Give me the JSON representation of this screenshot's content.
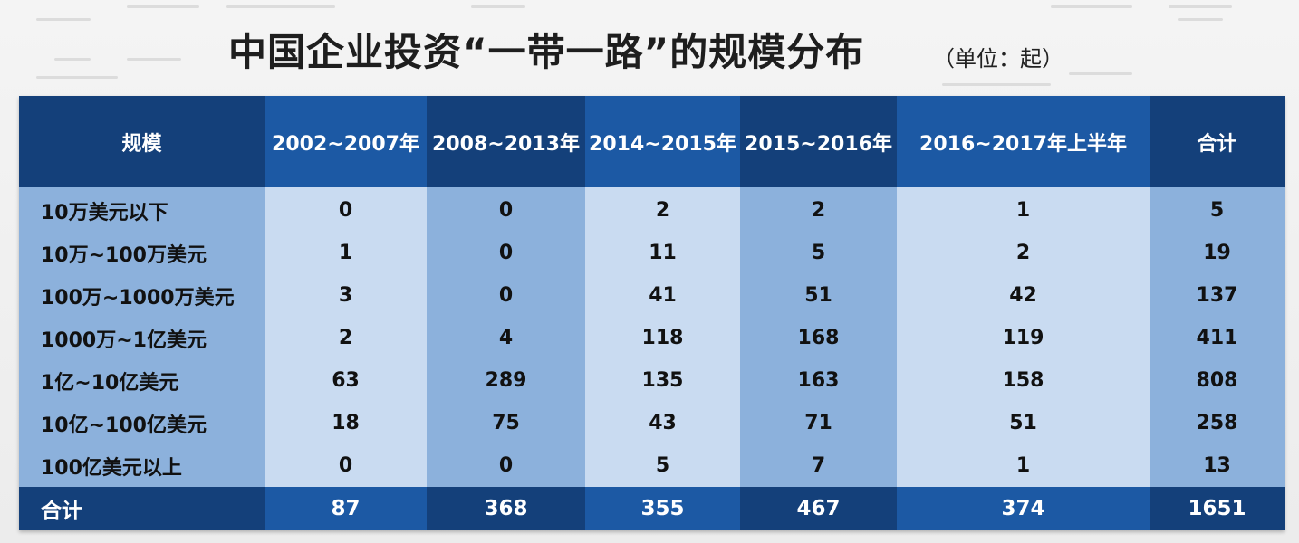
{
  "title": "中国企业投资“一带一路”的规模分布",
  "unit": "（单位：起）",
  "table": {
    "headers": [
      "规模",
      "2002~2007年",
      "2008~2013年",
      "2014~2015年",
      "2015~2016年",
      "2016~2017年上半年",
      "合计"
    ],
    "rows": [
      [
        "10万美元以下",
        "0",
        "0",
        "2",
        "2",
        "1",
        "5"
      ],
      [
        "10万~100万美元",
        "1",
        "0",
        "11",
        "5",
        "2",
        "19"
      ],
      [
        "100万~1000万美元",
        "3",
        "0",
        "41",
        "51",
        "42",
        "137"
      ],
      [
        "1000万~1亿美元",
        "2",
        "4",
        "118",
        "168",
        "119",
        "411"
      ],
      [
        "1亿~10亿美元",
        "63",
        "289",
        "135",
        "163",
        "158",
        "808"
      ],
      [
        "10亿~100亿美元",
        "18",
        "75",
        "43",
        "71",
        "51",
        "258"
      ],
      [
        "100亿美元以上",
        "0",
        "0",
        "5",
        "7",
        "1",
        "13"
      ]
    ],
    "total": [
      "合计",
      "87",
      "368",
      "355",
      "467",
      "374",
      "1651"
    ]
  },
  "colors": {
    "header_dark": "#14407a",
    "header_mid": "#1c59a4",
    "cell_a": "#8cb1dc",
    "cell_b": "#c9dbf1"
  }
}
